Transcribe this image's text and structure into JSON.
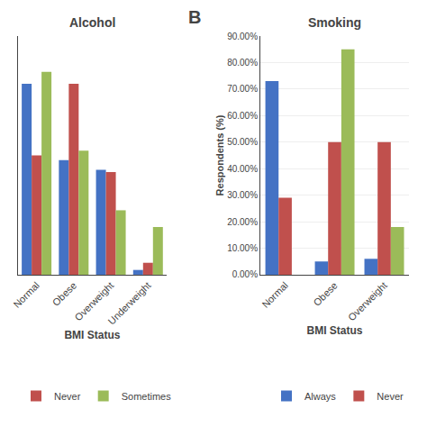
{
  "chart_data": [
    {
      "type": "bar",
      "title": "Alcohol",
      "xlabel": "BMI Status",
      "categories": [
        "Normal",
        "Obese",
        "Overweight",
        "Underweight"
      ],
      "series": [
        {
          "color": "#4472C4",
          "values": [
            80,
            48,
            44,
            2
          ]
        },
        {
          "name": "Never",
          "color": "#C0504D",
          "values": [
            50,
            80,
            43,
            5
          ]
        },
        {
          "name": "Sometimes",
          "color": "#9BBB59",
          "values": [
            85,
            52,
            27,
            20
          ]
        }
      ],
      "ylim": [
        0,
        100
      ],
      "grid": false,
      "tick_labels": "x",
      "legend": "lower left"
    },
    {
      "type": "bar",
      "title": "Smoking",
      "xlabel": "BMI Status",
      "ylabel": "Respondents (%)",
      "categories": [
        "Normal",
        "Obese",
        "Overweight"
      ],
      "series": [
        {
          "name": "Always",
          "color": "#4472C4",
          "values": [
            73,
            5,
            6
          ]
        },
        {
          "name": "Never",
          "color": "#C0504D",
          "values": [
            29,
            50,
            50
          ]
        },
        {
          "color": "#9BBB59",
          "values": [
            0,
            85,
            18
          ]
        }
      ],
      "ylim": [
        0,
        90
      ],
      "yticks": [
        {
          "value": 0,
          "label": "0.00%"
        },
        {
          "value": 10,
          "label": "10.00%"
        },
        {
          "value": 20,
          "label": "20.00%"
        },
        {
          "value": 30,
          "label": "30.00%"
        },
        {
          "value": 40,
          "label": "40.00%"
        },
        {
          "value": 50,
          "label": "50.00%"
        },
        {
          "value": 60,
          "label": "60.00%"
        },
        {
          "value": 70,
          "label": "70.00%"
        },
        {
          "value": 80,
          "label": "80.00%"
        },
        {
          "value": 90,
          "label": "90.00%"
        }
      ],
      "grid": true,
      "legend": "lower right",
      "annotations": [
        "B"
      ]
    }
  ]
}
